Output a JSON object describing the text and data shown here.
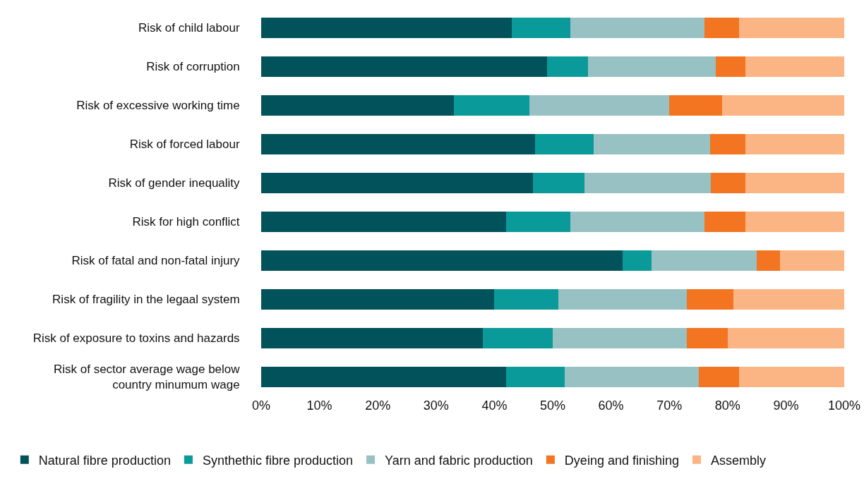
{
  "chart_data": {
    "type": "bar",
    "orientation": "horizontal",
    "stacked": true,
    "categories": [
      "Risk of child labour",
      "Risk of corruption",
      "Risk of excessive working time",
      "Risk of forced labour",
      "Risk of gender inequality",
      "Risk for high conflict",
      "Risk of fatal and non-fatal injury",
      "Risk of fragility in the legaal system",
      "Risk of exposure to toxins and hazards",
      "Risk of sector average wage below country minumum wage"
    ],
    "series": [
      {
        "name": "Natural fibre production",
        "color": "#01525b",
        "values": [
          43,
          49,
          33,
          47,
          46.6,
          42,
          62,
          40,
          38,
          42
        ]
      },
      {
        "name": "Synthethic fibre production",
        "color": "#0a9a99",
        "values": [
          10,
          7,
          13,
          10,
          8.9,
          11,
          5,
          11,
          12,
          10
        ]
      },
      {
        "name": "Yarn and fabric production",
        "color": "#97c1c2",
        "values": [
          23,
          22,
          24,
          20,
          21.6,
          23,
          18,
          22,
          23,
          23
        ]
      },
      {
        "name": "Dyeing and finishing",
        "color": "#f37521",
        "values": [
          6,
          5,
          9,
          6,
          5.9,
          7,
          4,
          8,
          7,
          7
        ]
      },
      {
        "name": "Assembly",
        "color": "#fbb584",
        "values": [
          18,
          17,
          21,
          17,
          17,
          17,
          11,
          19,
          20,
          18
        ]
      }
    ],
    "xlim": [
      0,
      100
    ],
    "xticks": [
      {
        "value": 0,
        "label": "0%"
      },
      {
        "value": 10,
        "label": "10%"
      },
      {
        "value": 20,
        "label": "20%"
      },
      {
        "value": 30,
        "label": "30%"
      },
      {
        "value": 40,
        "label": "40%"
      },
      {
        "value": 50,
        "label": "50%"
      },
      {
        "value": 60,
        "label": "60%"
      },
      {
        "value": 70,
        "label": "70%"
      },
      {
        "value": 80,
        "label": "80%"
      },
      {
        "value": 90,
        "label": "90%"
      },
      {
        "value": 100,
        "label": "100%"
      }
    ],
    "grid": false,
    "legend": "bottom"
  }
}
